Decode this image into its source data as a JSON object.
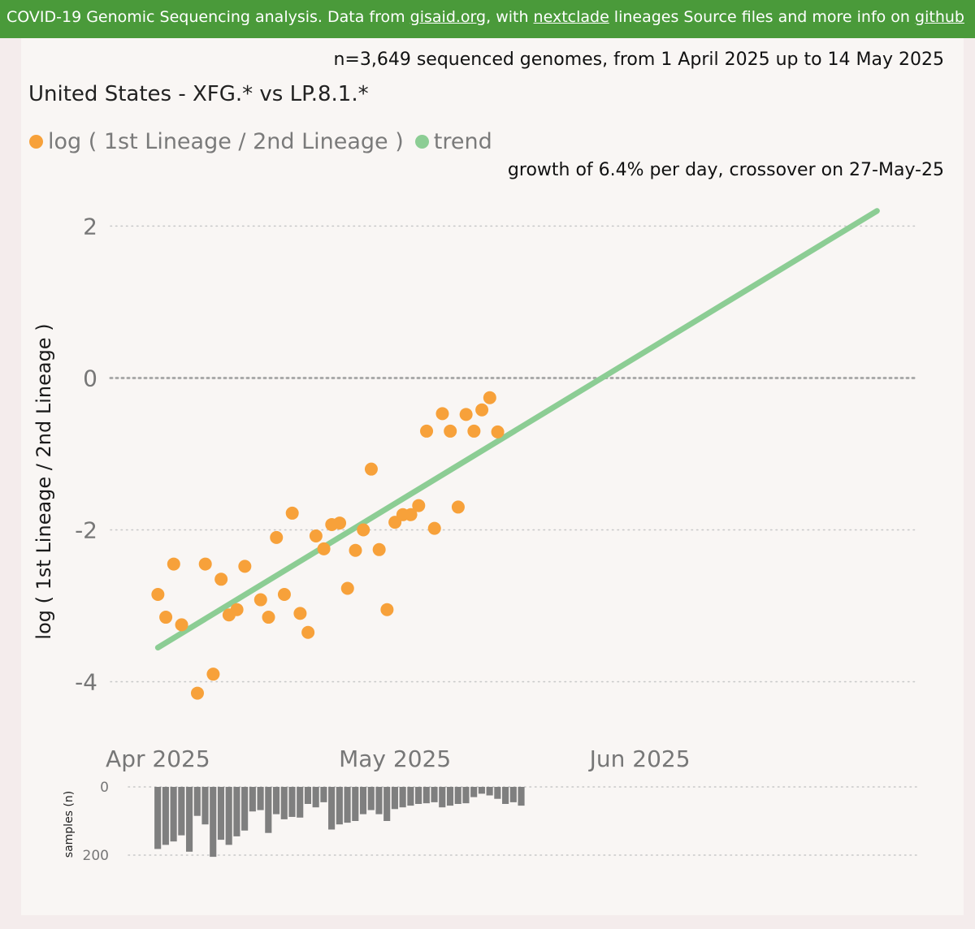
{
  "banner": {
    "text_1": "COVID-19 Genomic Sequencing analysis. Data from ",
    "link_gisaid": "gisaid.org",
    "text_2": ", with ",
    "link_nextclade": "nextclade",
    "text_3": " lineages Source files and more info on ",
    "link_github": "github"
  },
  "header": {
    "subtitle": "n=3,649 sequenced genomes, from 1 April 2025 up to 14 May 2025",
    "title": "United States - XFG.* vs LP.8.1.*",
    "growth": "growth of 6.4% per day, crossover on 27-May-25"
  },
  "legend": {
    "items": [
      {
        "label": "log ( 1st Lineage / 2nd Lineage )",
        "color": "#f7a13a"
      },
      {
        "label": "trend",
        "color": "#8ccd94"
      }
    ]
  },
  "colors": {
    "banner": "#4a9a3a",
    "points": "#f7a13a",
    "trend": "#8ccd94",
    "bars": "#7f7f7f",
    "grid": "#c8c8c8",
    "ticks": "#777777"
  },
  "chart_data": [
    {
      "type": "scatter",
      "ylabel": "log ( 1st Lineage / 2nd Lineage )",
      "x_tick_labels": [
        "Apr 2025",
        "May 2025",
        "Jun 2025"
      ],
      "x_ticks": [
        "2025-04-01",
        "2025-05-01",
        "2025-06-01"
      ],
      "y_ticks": [
        2,
        0,
        -2,
        -4
      ],
      "ylim": [
        -4.7,
        2.4
      ],
      "xlim": [
        "2025-03-26",
        "2025-07-06"
      ],
      "grid": true,
      "legend_placement": "top-left",
      "series": [
        {
          "name": "log ( 1st Lineage / 2nd Lineage )",
          "points": [
            {
              "x": "2025-04-01",
              "y": -2.85
            },
            {
              "x": "2025-04-02",
              "y": -3.15
            },
            {
              "x": "2025-04-03",
              "y": -2.45
            },
            {
              "x": "2025-04-04",
              "y": -3.25
            },
            {
              "x": "2025-04-06",
              "y": -4.15
            },
            {
              "x": "2025-04-07",
              "y": -2.45
            },
            {
              "x": "2025-04-08",
              "y": -3.9
            },
            {
              "x": "2025-04-09",
              "y": -2.65
            },
            {
              "x": "2025-04-10",
              "y": -3.12
            },
            {
              "x": "2025-04-11",
              "y": -3.05
            },
            {
              "x": "2025-04-12",
              "y": -2.48
            },
            {
              "x": "2025-04-14",
              "y": -2.92
            },
            {
              "x": "2025-04-15",
              "y": -3.15
            },
            {
              "x": "2025-04-16",
              "y": -2.1
            },
            {
              "x": "2025-04-17",
              "y": -2.85
            },
            {
              "x": "2025-04-18",
              "y": -1.78
            },
            {
              "x": "2025-04-19",
              "y": -3.1
            },
            {
              "x": "2025-04-20",
              "y": -3.35
            },
            {
              "x": "2025-04-21",
              "y": -2.08
            },
            {
              "x": "2025-04-22",
              "y": -2.25
            },
            {
              "x": "2025-04-23",
              "y": -1.93
            },
            {
              "x": "2025-04-24",
              "y": -1.91
            },
            {
              "x": "2025-04-25",
              "y": -2.77
            },
            {
              "x": "2025-04-26",
              "y": -2.27
            },
            {
              "x": "2025-04-27",
              "y": -2.0
            },
            {
              "x": "2025-04-28",
              "y": -1.2
            },
            {
              "x": "2025-04-29",
              "y": -2.26
            },
            {
              "x": "2025-04-30",
              "y": -3.05
            },
            {
              "x": "2025-05-01",
              "y": -1.9
            },
            {
              "x": "2025-05-02",
              "y": -1.8
            },
            {
              "x": "2025-05-03",
              "y": -1.8
            },
            {
              "x": "2025-05-04",
              "y": -1.68
            },
            {
              "x": "2025-05-05",
              "y": -0.7
            },
            {
              "x": "2025-05-06",
              "y": -1.98
            },
            {
              "x": "2025-05-07",
              "y": -0.47
            },
            {
              "x": "2025-05-08",
              "y": -0.7
            },
            {
              "x": "2025-05-09",
              "y": -1.7
            },
            {
              "x": "2025-05-10",
              "y": -0.48
            },
            {
              "x": "2025-05-11",
              "y": -0.7
            },
            {
              "x": "2025-05-12",
              "y": -0.42
            },
            {
              "x": "2025-05-13",
              "y": -0.26
            },
            {
              "x": "2025-05-14",
              "y": -0.71
            }
          ]
        },
        {
          "name": "trend",
          "type": "line",
          "points": [
            {
              "x": "2025-04-01",
              "y": -3.55
            },
            {
              "x": "2025-07-01",
              "y": 2.2
            }
          ]
        }
      ]
    },
    {
      "type": "bar",
      "ylabel": "samples (n)",
      "y_ticks": [
        0,
        200
      ],
      "ylim": [
        0,
        200
      ],
      "inverted": true,
      "x_start": "2025-04-01",
      "values": [
        182,
        170,
        160,
        142,
        190,
        85,
        110,
        205,
        155,
        170,
        145,
        128,
        72,
        68,
        135,
        80,
        95,
        88,
        90,
        50,
        60,
        45,
        125,
        110,
        105,
        100,
        80,
        68,
        80,
        100,
        65,
        60,
        55,
        50,
        48,
        45,
        60,
        55,
        50,
        48,
        30,
        20,
        25,
        35,
        50,
        45,
        55
      ]
    }
  ]
}
